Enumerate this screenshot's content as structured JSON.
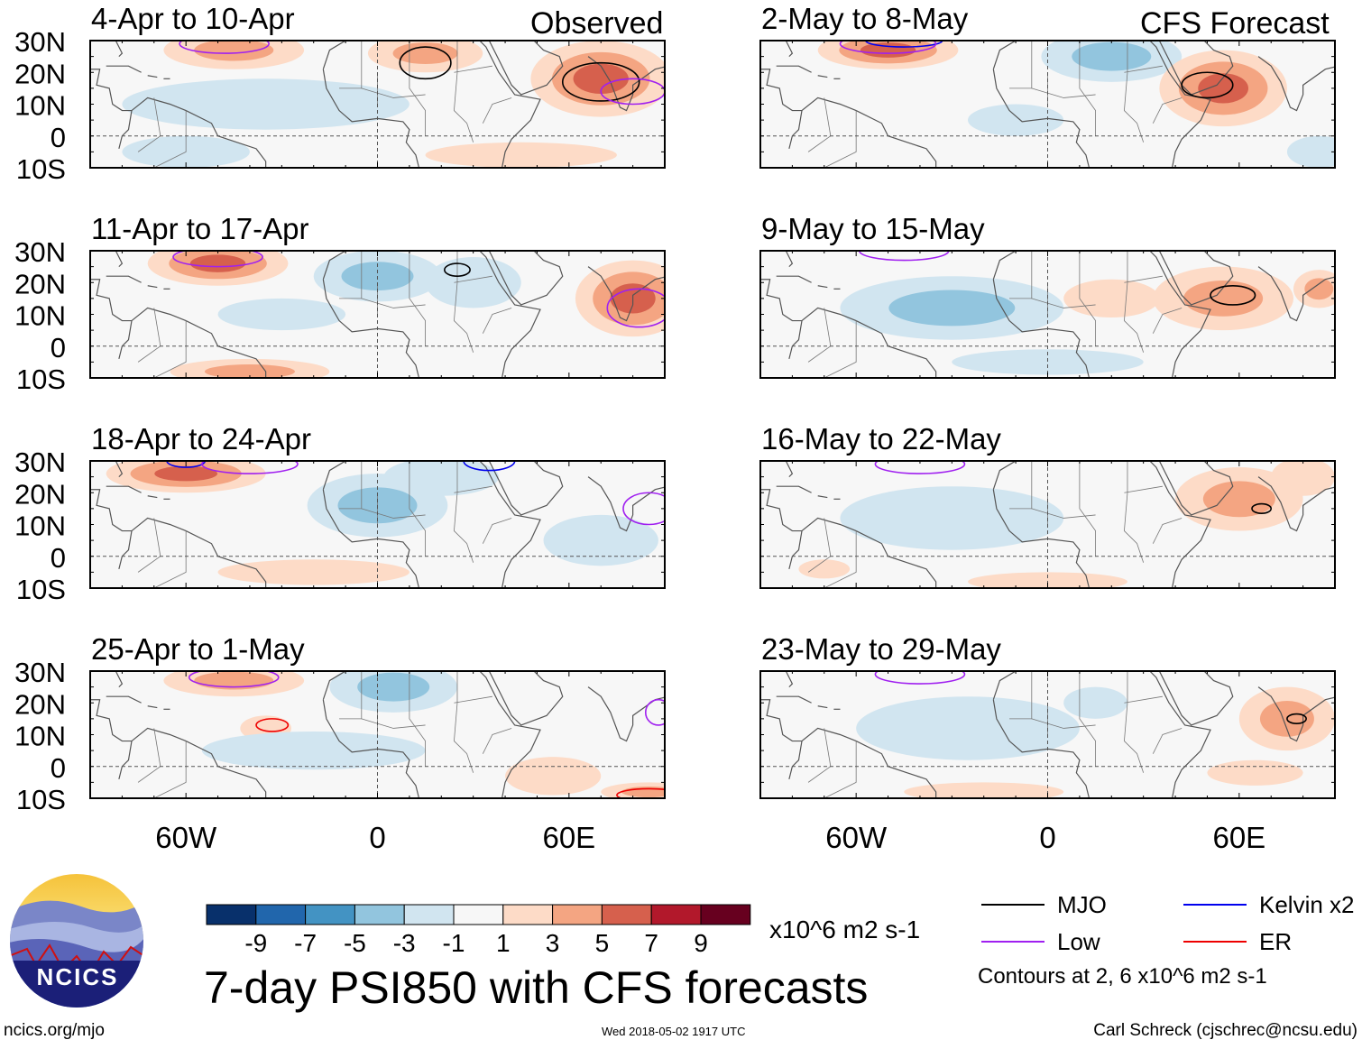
{
  "chart_data": {
    "type": "heatmap",
    "title": "7-day PSI850 with CFS forecasts",
    "units": "x10^6 m2 s-1",
    "lon_range": [
      -90,
      90
    ],
    "lat_range": [
      -10,
      30
    ],
    "lat_ticks": [
      "30N",
      "20N",
      "10N",
      "0",
      "10S"
    ],
    "lat_tick_values": [
      30,
      20,
      10,
      0,
      -10
    ],
    "lon_ticks": [
      "60W",
      "0",
      "60E"
    ],
    "lon_tick_values": [
      -60,
      0,
      60
    ],
    "colorbar": {
      "labels": [
        "-9",
        "-7",
        "-5",
        "-3",
        "-1",
        "1",
        "3",
        "5",
        "7",
        "9"
      ],
      "levels": [
        -9,
        -7,
        -5,
        -3,
        -1,
        1,
        3,
        5,
        7,
        9
      ],
      "colors": [
        "#08306b",
        "#2166ac",
        "#4393c3",
        "#92c5de",
        "#d1e5f0",
        "#f7f7f7",
        "#fddbc7",
        "#f4a582",
        "#d6604d",
        "#b2182b",
        "#67001f"
      ]
    },
    "legend": {
      "items": [
        {
          "label": "MJO",
          "color": "#000000"
        },
        {
          "label": "Kelvin x2",
          "color": "#0000ee"
        },
        {
          "label": "Low",
          "color": "#a020f0"
        },
        {
          "label": "ER",
          "color": "#ee0000"
        }
      ],
      "note": "Contours at 2, 6 x10^6 m2 s-1"
    },
    "columns": [
      {
        "heading": "Observed"
      },
      {
        "heading": "CFS Forecast"
      }
    ],
    "panels": [
      {
        "title": "4-Apr to 10-Apr",
        "col": 0,
        "row": 0,
        "anomalies": [
          [
            -45,
            27,
            22,
            6,
            3
          ],
          [
            70,
            18,
            22,
            12,
            6
          ],
          [
            15,
            26,
            18,
            6,
            3
          ],
          [
            -35,
            10,
            45,
            8,
            -1.5
          ],
          [
            -60,
            -5,
            20,
            5,
            -1.5
          ],
          [
            45,
            -6,
            30,
            4,
            1.5
          ]
        ],
        "contours": [
          [
            70,
            17,
            12,
            6,
            "MJO"
          ],
          [
            15,
            23,
            8,
            5,
            "MJO"
          ],
          [
            -48,
            29,
            14,
            3,
            "Low"
          ],
          [
            80,
            14,
            10,
            4,
            "Low"
          ]
        ]
      },
      {
        "title": "11-Apr to 17-Apr",
        "col": 0,
        "row": 1,
        "anomalies": [
          [
            -50,
            26,
            22,
            7,
            6
          ],
          [
            80,
            15,
            18,
            12,
            5
          ],
          [
            0,
            22,
            20,
            8,
            -3
          ],
          [
            -30,
            10,
            20,
            5,
            -2
          ],
          [
            -40,
            -8,
            25,
            4,
            3
          ],
          [
            30,
            20,
            15,
            8,
            -1.5
          ]
        ],
        "contours": [
          [
            -50,
            28,
            14,
            3,
            "Low"
          ],
          [
            82,
            12,
            10,
            6,
            "Low"
          ],
          [
            25,
            24,
            4,
            2,
            "MJO"
          ]
        ]
      },
      {
        "title": "18-Apr to 24-Apr",
        "col": 0,
        "row": 2,
        "anomalies": [
          [
            -60,
            26,
            25,
            6,
            5
          ],
          [
            0,
            16,
            22,
            10,
            -3
          ],
          [
            20,
            25,
            18,
            6,
            -2
          ],
          [
            -20,
            -5,
            30,
            4,
            1.5
          ],
          [
            70,
            5,
            18,
            8,
            -1.5
          ]
        ],
        "contours": [
          [
            -60,
            30,
            6,
            2,
            "Kelvin x2"
          ],
          [
            35,
            30,
            8,
            3,
            "Kelvin x2"
          ],
          [
            -40,
            29,
            15,
            3,
            "Low"
          ],
          [
            85,
            15,
            8,
            5,
            "Low"
          ]
        ]
      },
      {
        "title": "25-Apr to 1-May",
        "col": 0,
        "row": 3,
        "anomalies": [
          [
            -45,
            27,
            22,
            5,
            3
          ],
          [
            5,
            25,
            20,
            8,
            -3
          ],
          [
            55,
            -3,
            15,
            6,
            2
          ],
          [
            -35,
            12,
            8,
            4,
            2
          ],
          [
            -20,
            5,
            35,
            6,
            -1.5
          ],
          [
            85,
            -8,
            15,
            3,
            3
          ]
        ],
        "contours": [
          [
            -45,
            28,
            14,
            3,
            "Low"
          ],
          [
            -33,
            13,
            5,
            2,
            "ER"
          ],
          [
            85,
            -9,
            10,
            2,
            "ER"
          ],
          [
            88,
            17,
            4,
            4,
            "Low"
          ]
        ]
      },
      {
        "title": "2-May to 8-May",
        "col": 1,
        "row": 0,
        "anomalies": [
          [
            -50,
            27,
            22,
            6,
            5
          ],
          [
            20,
            25,
            22,
            8,
            -3
          ],
          [
            55,
            15,
            20,
            12,
            5
          ],
          [
            -10,
            5,
            15,
            5,
            -1.5
          ],
          [
            85,
            -5,
            10,
            5,
            -2
          ]
        ],
        "contours": [
          [
            -45,
            30,
            12,
            2,
            "Kelvin x2"
          ],
          [
            -50,
            29,
            15,
            3,
            "Low"
          ],
          [
            50,
            16,
            8,
            4,
            "MJO"
          ]
        ]
      },
      {
        "title": "9-May to 15-May",
        "col": 1,
        "row": 1,
        "anomalies": [
          [
            -30,
            12,
            35,
            10,
            -3
          ],
          [
            55,
            15,
            22,
            10,
            4
          ],
          [
            20,
            15,
            15,
            6,
            2
          ],
          [
            85,
            18,
            8,
            6,
            3
          ],
          [
            0,
            -5,
            30,
            4,
            -1.5
          ]
        ],
        "contours": [
          [
            -45,
            30,
            14,
            3,
            "Low"
          ],
          [
            58,
            16,
            7,
            3,
            "MJO"
          ]
        ]
      },
      {
        "title": "16-May to 22-May",
        "col": 1,
        "row": 2,
        "anomalies": [
          [
            -30,
            12,
            35,
            10,
            -2
          ],
          [
            60,
            18,
            20,
            10,
            3
          ],
          [
            80,
            25,
            10,
            6,
            2
          ],
          [
            0,
            -8,
            25,
            3,
            2
          ],
          [
            -70,
            -4,
            8,
            3,
            1.5
          ]
        ],
        "contours": [
          [
            -40,
            29,
            14,
            3,
            "Low"
          ],
          [
            67,
            15,
            3,
            1.5,
            "MJO"
          ]
        ]
      },
      {
        "title": "23-May to 29-May",
        "col": 1,
        "row": 3,
        "anomalies": [
          [
            -25,
            12,
            35,
            10,
            -2
          ],
          [
            75,
            15,
            15,
            10,
            3
          ],
          [
            -20,
            -8,
            25,
            3,
            2
          ],
          [
            65,
            -2,
            15,
            4,
            1.5
          ],
          [
            15,
            20,
            10,
            5,
            -1.5
          ]
        ],
        "contours": [
          [
            -40,
            29,
            14,
            3,
            "Low"
          ],
          [
            78,
            15,
            3,
            1.5,
            "MJO"
          ]
        ]
      }
    ]
  },
  "footer": {
    "title": "7-day PSI850 with CFS forecasts",
    "url": "ncics.org/mjo",
    "timestamp": "Wed 2018-05-02 1917 UTC",
    "author": "Carl Schreck (cjschrec@ncsu.edu)",
    "units_label": "x10^6 m2 s-1"
  },
  "logo": {
    "text": "NCICS"
  }
}
